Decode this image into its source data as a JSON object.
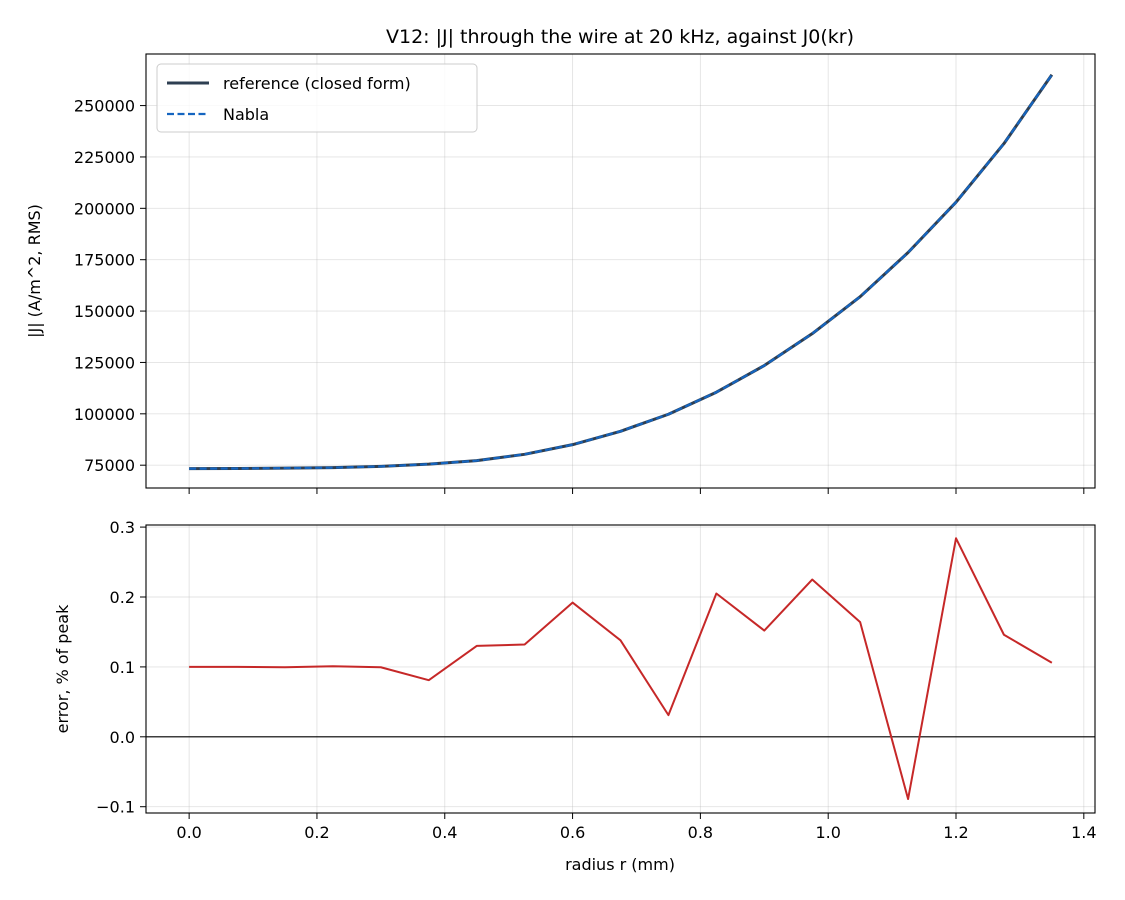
{
  "chart_data": [
    {
      "type": "line",
      "title": "V12: |J| through the wire at 20 kHz, against J0(kr)",
      "xlabel": "",
      "ylabel": "|J| (A/m^2, RMS)",
      "xlim": [
        -0.0675,
        1.4175
      ],
      "ylim": [
        63900,
        275100
      ],
      "xticks": [
        0.0,
        0.2,
        0.4,
        0.6,
        0.8,
        1.0,
        1.2,
        1.4
      ],
      "yticks": [
        75000,
        100000,
        125000,
        150000,
        175000,
        200000,
        225000,
        250000
      ],
      "ytick_labels": [
        "75000",
        "100000",
        "125000",
        "150000",
        "175000",
        "200000",
        "225000",
        "250000"
      ],
      "grid": true,
      "legend_position": "upper-left",
      "x": [
        0.0,
        0.075,
        0.15,
        0.225,
        0.3,
        0.375,
        0.45,
        0.525,
        0.6,
        0.675,
        0.75,
        0.825,
        0.9,
        0.975,
        1.05,
        1.125,
        1.2,
        1.275,
        1.35
      ],
      "series": [
        {
          "name": "reference (closed form)",
          "color": "#2e3f52",
          "style": "solid",
          "values": [
            73300,
            73400,
            73600,
            73800,
            74400,
            75500,
            77200,
            80300,
            85000,
            91500,
            99800,
            110500,
            123500,
            139000,
            157000,
            178500,
            203000,
            231500,
            265000
          ]
        },
        {
          "name": "Nabla",
          "color": "#1565c0",
          "style": "dashed",
          "values": [
            73300,
            73400,
            73600,
            73800,
            74400,
            75500,
            77200,
            80300,
            85000,
            91500,
            99800,
            110500,
            123500,
            139000,
            157000,
            178500,
            203000,
            231500,
            265000
          ]
        }
      ]
    },
    {
      "type": "line",
      "title": "",
      "xlabel": "radius r (mm)",
      "ylabel": "error, % of peak",
      "xlim": [
        -0.0675,
        1.4175
      ],
      "ylim": [
        -0.109,
        0.303
      ],
      "xticks": [
        0.0,
        0.2,
        0.4,
        0.6,
        0.8,
        1.0,
        1.2,
        1.4
      ],
      "xtick_labels": [
        "0.0",
        "0.2",
        "0.4",
        "0.6",
        "0.8",
        "1.0",
        "1.2",
        "1.4"
      ],
      "yticks": [
        -0.1,
        0.0,
        0.1,
        0.2,
        0.3
      ],
      "ytick_labels": [
        "−0.1",
        "0.0",
        "0.1",
        "0.2",
        "0.3"
      ],
      "grid": true,
      "hline": 0.0,
      "x": [
        0.0,
        0.075,
        0.15,
        0.225,
        0.3,
        0.375,
        0.45,
        0.525,
        0.6,
        0.675,
        0.75,
        0.825,
        0.9,
        0.975,
        1.05,
        1.125,
        1.2,
        1.275,
        1.35
      ],
      "series": [
        {
          "name": "",
          "color": "#c62828",
          "style": "solid",
          "values": [
            0.1,
            0.1,
            0.0995,
            0.101,
            0.0995,
            0.081,
            0.13,
            0.132,
            0.192,
            0.138,
            0.031,
            0.205,
            0.152,
            0.225,
            0.164,
            -0.089,
            0.284,
            0.146,
            0.106
          ]
        }
      ]
    }
  ]
}
